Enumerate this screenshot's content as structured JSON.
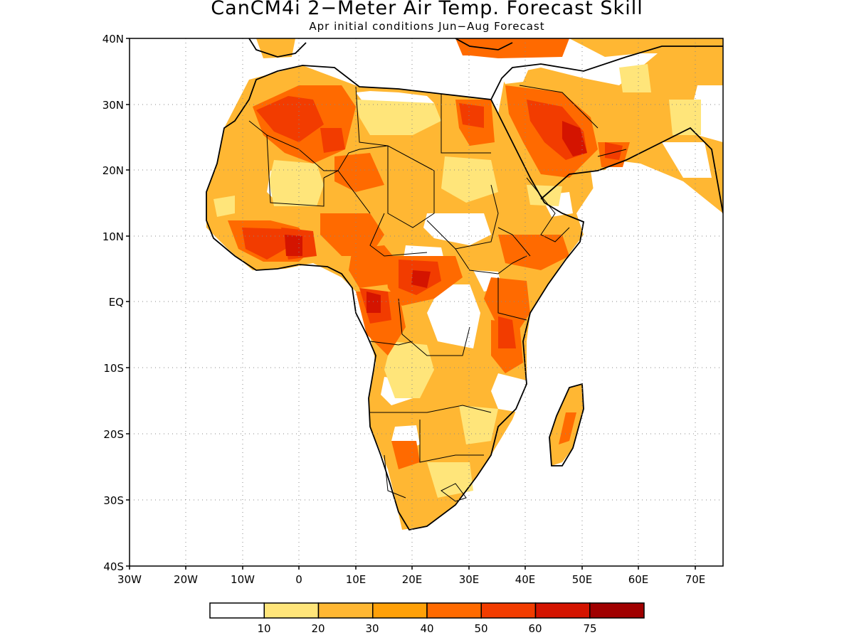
{
  "title": "CanCM4i 2−Meter Air Temp. Forecast Skill",
  "subtitle": "Apr initial conditions  Jun−Aug Forecast",
  "map": {
    "lon_range": [
      -30,
      75
    ],
    "lat_range": [
      -40,
      40
    ],
    "lat_labels": [
      "40N",
      "30N",
      "20N",
      "10N",
      "EQ",
      "10S",
      "20S",
      "30S",
      "40S"
    ],
    "lon_labels": [
      "30W",
      "20W",
      "10W",
      "0",
      "10E",
      "20E",
      "30E",
      "40E",
      "50E",
      "60E",
      "70E"
    ],
    "grid": "dotted"
  },
  "legend": {
    "labels": [
      "10",
      "20",
      "30",
      "40",
      "50",
      "60",
      "75"
    ],
    "colors": [
      "#ffffff",
      "#ffe57a",
      "#ffb733",
      "#ffa008",
      "#ff6a00",
      "#f23c00",
      "#d41400",
      "#a00000"
    ]
  }
}
